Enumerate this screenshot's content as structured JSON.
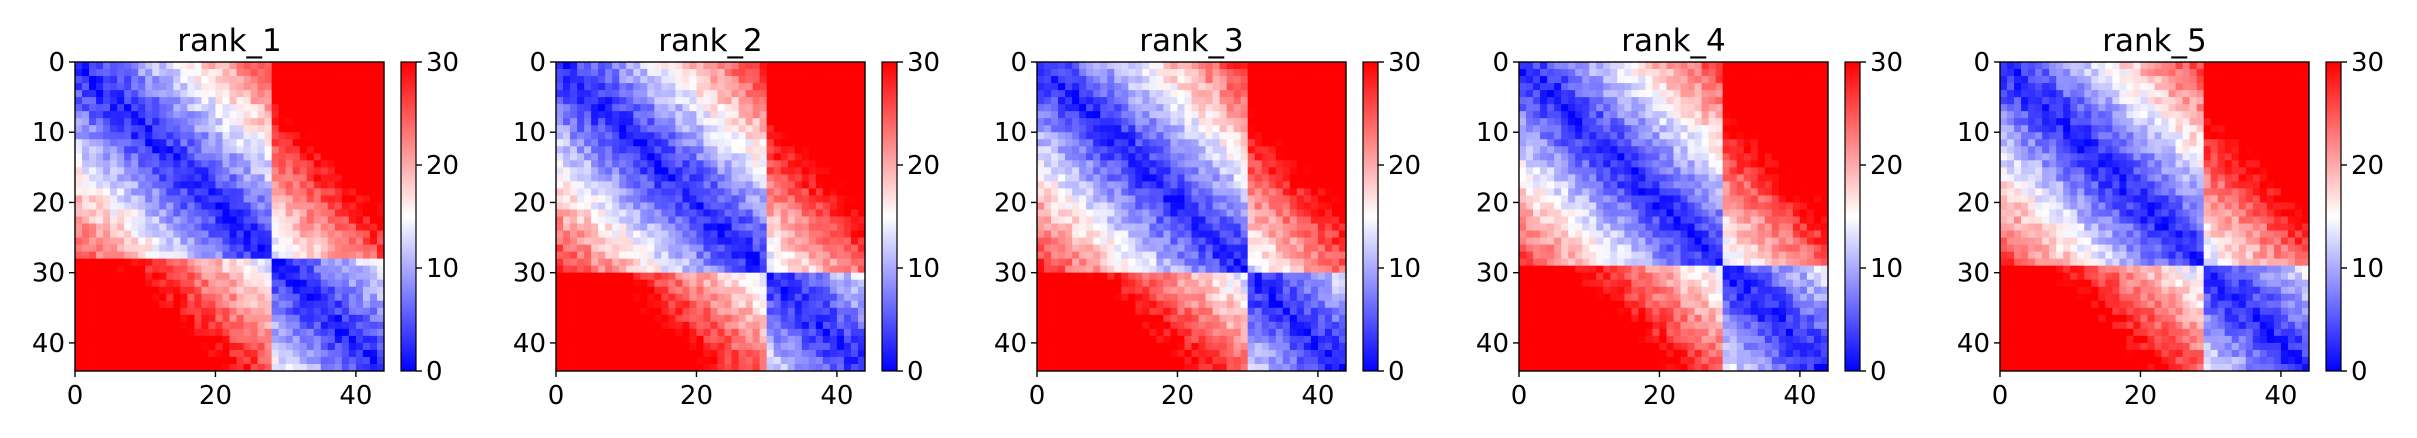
{
  "chart_data": [
    {
      "type": "heatmap",
      "title": "rank_1",
      "n": 44,
      "block_split": 28,
      "xlim": [
        0,
        44
      ],
      "ylim": [
        44,
        0
      ],
      "xticks": [
        0,
        20,
        40
      ],
      "yticks": [
        0,
        10,
        20,
        30,
        40
      ],
      "colorbar": {
        "min": 0,
        "max": 30,
        "ticks": [
          0,
          10,
          20,
          30
        ],
        "colormap": [
          "#0000ff",
          "#ffffff",
          "#ff0000"
        ]
      }
    },
    {
      "type": "heatmap",
      "title": "rank_2",
      "n": 44,
      "block_split": 30,
      "xlim": [
        0,
        44
      ],
      "ylim": [
        44,
        0
      ],
      "xticks": [
        0,
        20,
        40
      ],
      "yticks": [
        0,
        10,
        20,
        30,
        40
      ],
      "colorbar": {
        "min": 0,
        "max": 30,
        "ticks": [
          0,
          10,
          20,
          30
        ],
        "colormap": [
          "#0000ff",
          "#ffffff",
          "#ff0000"
        ]
      }
    },
    {
      "type": "heatmap",
      "title": "rank_3",
      "n": 44,
      "block_split": 30,
      "xlim": [
        0,
        44
      ],
      "ylim": [
        44,
        0
      ],
      "xticks": [
        0,
        20,
        40
      ],
      "yticks": [
        0,
        10,
        20,
        30,
        40
      ],
      "colorbar": {
        "min": 0,
        "max": 30,
        "ticks": [
          0,
          10,
          20,
          30
        ],
        "colormap": [
          "#0000ff",
          "#ffffff",
          "#ff0000"
        ]
      }
    },
    {
      "type": "heatmap",
      "title": "rank_4",
      "n": 44,
      "block_split": 29,
      "xlim": [
        0,
        44
      ],
      "ylim": [
        44,
        0
      ],
      "xticks": [
        0,
        20,
        40
      ],
      "yticks": [
        0,
        10,
        20,
        30,
        40
      ],
      "colorbar": {
        "min": 0,
        "max": 30,
        "ticks": [
          0,
          10,
          20,
          30
        ],
        "colormap": [
          "#0000ff",
          "#ffffff",
          "#ff0000"
        ]
      }
    },
    {
      "type": "heatmap",
      "title": "rank_5",
      "n": 44,
      "block_split": 29,
      "xlim": [
        0,
        44
      ],
      "ylim": [
        44,
        0
      ],
      "xticks": [
        0,
        20,
        40
      ],
      "yticks": [
        0,
        10,
        20,
        30,
        40
      ],
      "colorbar": {
        "min": 0,
        "max": 30,
        "ticks": [
          0,
          10,
          20,
          30
        ],
        "colormap": [
          "#0000ff",
          "#ffffff",
          "#ff0000"
        ]
      }
    }
  ]
}
